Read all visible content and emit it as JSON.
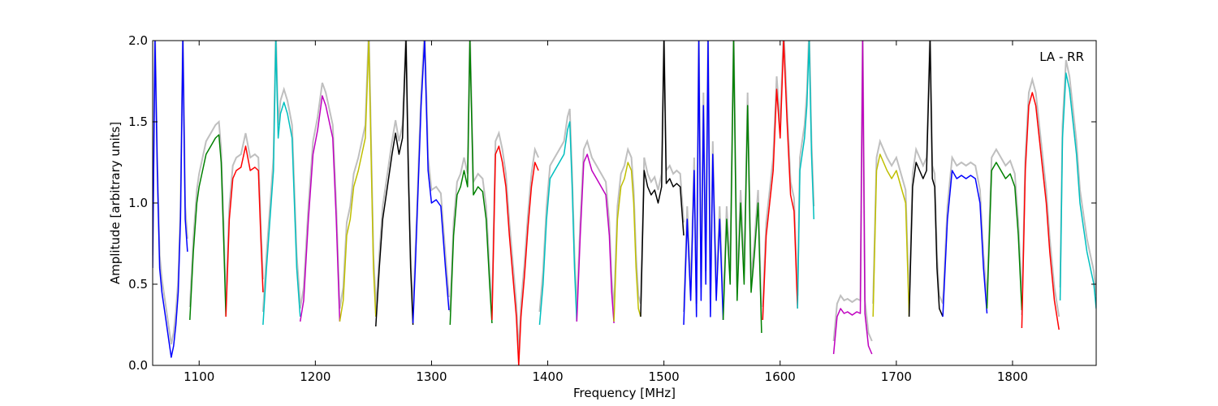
{
  "chart_data": {
    "type": "line",
    "title": "",
    "annotation": "LA - RR",
    "xlabel": "Frequency [MHz]",
    "ylabel": "Amplitude [arbitrary units]",
    "xlim": [
      1060,
      1872
    ],
    "ylim": [
      0.0,
      2.0
    ],
    "x_ticks": [
      1100,
      1200,
      1300,
      1400,
      1500,
      1600,
      1700,
      1800
    ],
    "x_tick_labels": [
      "1100",
      "1200",
      "1300",
      "1400",
      "1500",
      "1600",
      "1700",
      "1800"
    ],
    "y_ticks": [
      0.0,
      0.5,
      1.0,
      1.5,
      2.0
    ],
    "y_tick_labels": [
      "0.0",
      "0.5",
      "1.0",
      "1.5",
      "2.0"
    ],
    "grid": false,
    "reference_color": "#bfbfbf",
    "series": [
      {
        "color": "#0000ff",
        "x": [
          1060,
          1062,
          1064,
          1066,
          1068,
          1070,
          1072,
          1074,
          1076,
          1078,
          1080,
          1082,
          1084,
          1086,
          1088,
          1090
        ],
        "y": [
          0.6,
          2.0,
          1.2,
          0.6,
          0.45,
          0.35,
          0.25,
          0.15,
          0.05,
          0.12,
          0.25,
          0.45,
          0.9,
          2.0,
          0.9,
          0.7
        ]
      },
      {
        "color": "#008000",
        "x": [
          1092,
          1095,
          1098,
          1100,
          1103,
          1106,
          1110,
          1114,
          1117,
          1119,
          1121,
          1123
        ],
        "y": [
          0.28,
          0.7,
          1.0,
          1.1,
          1.2,
          1.3,
          1.35,
          1.4,
          1.42,
          1.25,
          0.8,
          0.3
        ]
      },
      {
        "color": "#ff0000",
        "x": [
          1123,
          1126,
          1129,
          1132,
          1136,
          1140,
          1144,
          1148,
          1151,
          1153,
          1155
        ],
        "y": [
          0.3,
          0.9,
          1.15,
          1.2,
          1.22,
          1.35,
          1.2,
          1.22,
          1.2,
          0.8,
          0.45
        ]
      },
      {
        "color": "#00bfbf",
        "x": [
          1155,
          1158,
          1161,
          1164,
          1166,
          1168,
          1170,
          1173,
          1176,
          1180,
          1184,
          1187
        ],
        "y": [
          0.25,
          0.6,
          0.9,
          1.2,
          2.0,
          1.4,
          1.55,
          1.62,
          1.55,
          1.4,
          0.6,
          0.3
        ]
      },
      {
        "color": "#bf00bf",
        "x": [
          1187,
          1190,
          1194,
          1198,
          1202,
          1206,
          1209,
          1212,
          1215,
          1218,
          1221
        ],
        "y": [
          0.27,
          0.4,
          0.9,
          1.3,
          1.45,
          1.66,
          1.6,
          1.5,
          1.4,
          0.9,
          0.27
        ]
      },
      {
        "color": "#bfbf00",
        "x": [
          1221,
          1224,
          1227,
          1230,
          1233,
          1237,
          1240,
          1243,
          1246,
          1248,
          1250,
          1252
        ],
        "y": [
          0.27,
          0.4,
          0.8,
          0.9,
          1.1,
          1.2,
          1.3,
          1.4,
          2.0,
          1.3,
          0.6,
          0.3
        ]
      },
      {
        "color": "#000000",
        "x": [
          1252,
          1255,
          1258,
          1262,
          1266,
          1269,
          1272,
          1275,
          1278,
          1280,
          1282,
          1284
        ],
        "y": [
          0.24,
          0.6,
          0.9,
          1.1,
          1.3,
          1.43,
          1.3,
          1.4,
          2.0,
          1.2,
          0.6,
          0.25
        ]
      },
      {
        "color": "#0000ff",
        "x": [
          1284,
          1286,
          1288,
          1291,
          1294,
          1297,
          1300,
          1304,
          1308,
          1312,
          1315
        ],
        "y": [
          0.26,
          0.6,
          1.0,
          1.6,
          2.0,
          1.2,
          1.0,
          1.02,
          0.98,
          0.6,
          0.34
        ]
      },
      {
        "color": "#008000",
        "x": [
          1316,
          1319,
          1322,
          1325,
          1328,
          1331,
          1333,
          1336,
          1340,
          1344,
          1347,
          1350,
          1352
        ],
        "y": [
          0.25,
          0.8,
          1.05,
          1.1,
          1.2,
          1.1,
          2.0,
          1.05,
          1.1,
          1.07,
          0.9,
          0.5,
          0.26
        ]
      },
      {
        "color": "#ff0000",
        "x": [
          1352,
          1355,
          1358,
          1361,
          1364,
          1367,
          1370,
          1373,
          1375,
          1377,
          1380,
          1383,
          1386,
          1389,
          1392
        ],
        "y": [
          0.28,
          1.3,
          1.35,
          1.25,
          1.1,
          0.8,
          0.55,
          0.3,
          0.0,
          0.3,
          0.55,
          0.85,
          1.1,
          1.25,
          1.2
        ]
      },
      {
        "color": "#00bfbf",
        "x": [
          1393,
          1396,
          1399,
          1402,
          1406,
          1410,
          1414,
          1417,
          1419,
          1421,
          1423,
          1425
        ],
        "y": [
          0.25,
          0.5,
          0.9,
          1.15,
          1.2,
          1.25,
          1.3,
          1.45,
          1.5,
          1.1,
          0.6,
          0.27
        ]
      },
      {
        "color": "#bf00bf",
        "x": [
          1425,
          1428,
          1431,
          1434,
          1438,
          1442,
          1446,
          1450,
          1453,
          1455,
          1457
        ],
        "y": [
          0.27,
          0.8,
          1.25,
          1.3,
          1.2,
          1.15,
          1.1,
          1.05,
          0.8,
          0.45,
          0.26
        ]
      },
      {
        "color": "#bfbf00",
        "x": [
          1457,
          1460,
          1463,
          1466,
          1469,
          1472,
          1474,
          1476,
          1478,
          1480
        ],
        "y": [
          0.27,
          0.9,
          1.1,
          1.15,
          1.25,
          1.2,
          1.0,
          0.6,
          0.35,
          0.3
        ]
      },
      {
        "color": "#000000",
        "x": [
          1480,
          1483,
          1486,
          1489,
          1492,
          1495,
          1498,
          1500,
          1502,
          1505,
          1508,
          1511,
          1514,
          1517
        ],
        "y": [
          0.3,
          1.2,
          1.1,
          1.05,
          1.08,
          1.0,
          1.1,
          2.0,
          1.12,
          1.15,
          1.1,
          1.12,
          1.1,
          0.8
        ]
      },
      {
        "color": "#0000ff",
        "x": [
          1517,
          1520,
          1523,
          1526,
          1528,
          1530,
          1532,
          1534,
          1536,
          1538,
          1540,
          1542,
          1545,
          1548,
          1551
        ],
        "y": [
          0.25,
          0.9,
          0.4,
          1.2,
          0.3,
          2.0,
          0.4,
          1.6,
          0.5,
          2.0,
          0.3,
          1.3,
          0.4,
          0.9,
          0.28
        ]
      },
      {
        "color": "#008000",
        "x": [
          1551,
          1554,
          1557,
          1560,
          1563,
          1566,
          1569,
          1572,
          1575,
          1578,
          1581,
          1584
        ],
        "y": [
          0.28,
          0.9,
          0.5,
          2.0,
          0.4,
          1.0,
          0.5,
          1.6,
          0.45,
          0.7,
          1.0,
          0.2
        ]
      },
      {
        "color": "#ff0000",
        "x": [
          1585,
          1588,
          1591,
          1594,
          1597,
          1600,
          1603,
          1606,
          1609,
          1612,
          1615
        ],
        "y": [
          0.28,
          0.8,
          1.0,
          1.2,
          1.7,
          1.4,
          2.0,
          1.5,
          1.05,
          0.95,
          0.35
        ]
      },
      {
        "color": "#00bfbf",
        "x": [
          1615,
          1617,
          1619,
          1621,
          1623,
          1625,
          1627,
          1629
        ],
        "y": [
          0.35,
          1.2,
          1.3,
          1.4,
          1.6,
          2.0,
          1.3,
          0.9
        ]
      },
      {
        "color": "#bf00bf",
        "x": [
          1646,
          1649,
          1652,
          1655,
          1658,
          1662,
          1666,
          1669,
          1671,
          1673,
          1676,
          1679
        ],
        "y": [
          0.07,
          0.3,
          0.35,
          0.32,
          0.33,
          0.31,
          0.33,
          0.32,
          2.0,
          0.32,
          0.12,
          0.07
        ]
      },
      {
        "color": "#bfbf00",
        "x": [
          1680,
          1683,
          1686,
          1689,
          1692,
          1696,
          1700,
          1704,
          1708,
          1711
        ],
        "y": [
          0.3,
          1.2,
          1.3,
          1.25,
          1.2,
          1.15,
          1.2,
          1.1,
          1.0,
          0.3
        ]
      },
      {
        "color": "#000000",
        "x": [
          1711,
          1714,
          1717,
          1720,
          1723,
          1726,
          1729,
          1731,
          1733,
          1735,
          1737,
          1740
        ],
        "y": [
          0.3,
          1.1,
          1.25,
          1.2,
          1.15,
          1.2,
          2.0,
          1.15,
          1.1,
          0.6,
          0.35,
          0.3
        ]
      },
      {
        "color": "#0000ff",
        "x": [
          1740,
          1744,
          1748,
          1752,
          1756,
          1760,
          1764,
          1768,
          1772,
          1775,
          1778
        ],
        "y": [
          0.3,
          0.9,
          1.2,
          1.15,
          1.17,
          1.15,
          1.17,
          1.15,
          1.0,
          0.6,
          0.32
        ]
      },
      {
        "color": "#008000",
        "x": [
          1778,
          1782,
          1786,
          1790,
          1794,
          1798,
          1802,
          1805,
          1808
        ],
        "y": [
          0.35,
          1.2,
          1.25,
          1.2,
          1.15,
          1.18,
          1.1,
          0.8,
          0.34
        ]
      },
      {
        "color": "#ff0000",
        "x": [
          1808,
          1811,
          1814,
          1817,
          1820,
          1823,
          1826,
          1829,
          1832,
          1836,
          1840
        ],
        "y": [
          0.23,
          1.2,
          1.6,
          1.68,
          1.6,
          1.4,
          1.2,
          1.0,
          0.7,
          0.4,
          0.22
        ]
      },
      {
        "color": "#00bfbf",
        "x": [
          1841,
          1843,
          1846,
          1849,
          1852,
          1855,
          1858,
          1861,
          1864,
          1867,
          1870,
          1872
        ],
        "y": [
          0.4,
          1.4,
          1.8,
          1.7,
          1.5,
          1.3,
          1.0,
          0.85,
          0.7,
          0.6,
          0.5,
          0.35
        ]
      }
    ]
  }
}
